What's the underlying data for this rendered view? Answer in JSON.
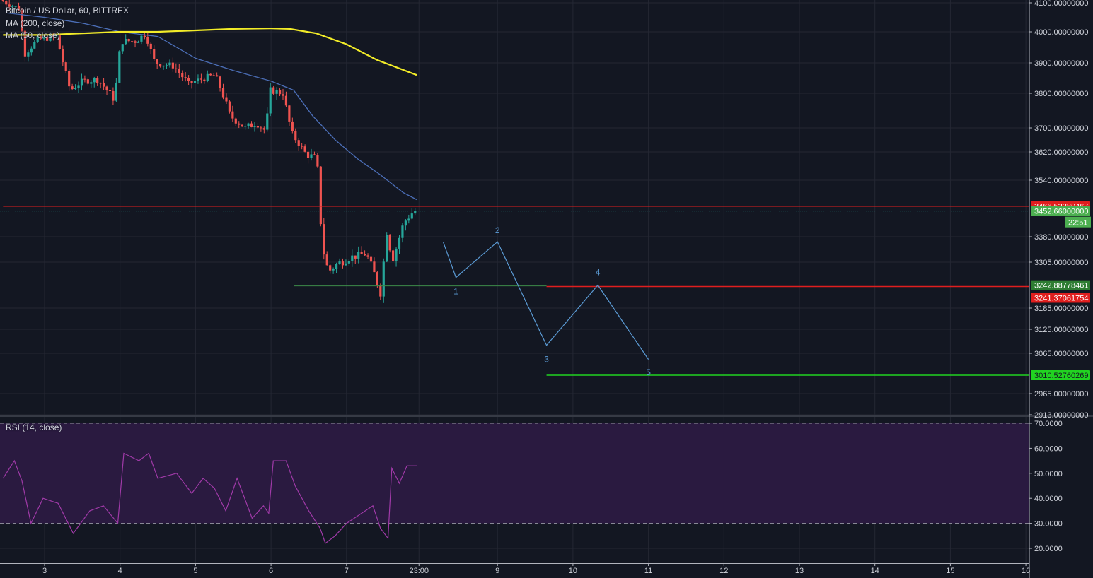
{
  "header": {
    "symbol_title": "Bitcoin / US Dollar, 60, BITTREX",
    "indicators": [
      "MA (200, close)",
      "MA (50, close)"
    ],
    "rsi_label": "RSI (14, close)"
  },
  "colors": {
    "background": "#131722",
    "grid": "#242733",
    "up_candle": "#26a69a",
    "down_candle": "#ef5350",
    "ma200": "#f2ec28",
    "ma50": "#4c6fb8",
    "wave": "#5b9bd5",
    "resistance": "#e01e1e",
    "support_green": "#21d321",
    "support_thin": "#3d8b4a",
    "rsi": "#a03aa8",
    "rsi_band": "#2a1a40",
    "text": "#d1d4dc"
  },
  "chart_data": [
    {
      "type": "candlestick",
      "title": "Bitcoin / US Dollar, 60, BITTREX",
      "ylim": [
        2913,
        4100
      ],
      "yticks": [
        "4100.00000000",
        "4000.00000000",
        "3900.00000000",
        "3800.00000000",
        "3700.00000000",
        "3620.00000000",
        "3540.00000000",
        "3380.00000000",
        "3305.00000000",
        "3185.00000000",
        "3125.00000000",
        "3065.00000000",
        "2965.00000000",
        "2913.00000000"
      ],
      "xticks": [
        {
          "label": "3",
          "day": 3
        },
        {
          "label": "4",
          "day": 4
        },
        {
          "label": "5",
          "day": 5
        },
        {
          "label": "6",
          "day": 6
        },
        {
          "label": "7",
          "day": 7
        },
        {
          "label": "23:00",
          "day": 7.96
        },
        {
          "label": "9",
          "day": 9
        },
        {
          "label": "10",
          "day": 10
        },
        {
          "label": "11",
          "day": 11
        },
        {
          "label": "12",
          "day": 12
        },
        {
          "label": "13",
          "day": 13
        },
        {
          "label": "14",
          "day": 14
        },
        {
          "label": "15",
          "day": 15
        },
        {
          "label": "16",
          "day": 16
        }
      ],
      "price_path": [
        [
          2.45,
          4110
        ],
        [
          2.7,
          4080
        ],
        [
          2.78,
          3930
        ],
        [
          2.95,
          3975
        ],
        [
          3.2,
          3985
        ],
        [
          3.38,
          3810
        ],
        [
          3.55,
          3840
        ],
        [
          3.75,
          3845
        ],
        [
          3.97,
          3780
        ],
        [
          4.05,
          3970
        ],
        [
          4.25,
          3970
        ],
        [
          4.38,
          3995
        ],
        [
          4.5,
          3900
        ],
        [
          4.75,
          3890
        ],
        [
          4.95,
          3830
        ],
        [
          5.1,
          3845
        ],
        [
          5.3,
          3860
        ],
        [
          5.4,
          3800
        ],
        [
          5.5,
          3735
        ],
        [
          5.7,
          3700
        ],
        [
          5.85,
          3715
        ],
        [
          5.97,
          3690
        ],
        [
          6.03,
          3810
        ],
        [
          6.2,
          3800
        ],
        [
          6.32,
          3680
        ],
        [
          6.5,
          3615
        ],
        [
          6.65,
          3600
        ],
        [
          6.72,
          3350
        ],
        [
          6.8,
          3280
        ],
        [
          6.92,
          3300
        ],
        [
          7.1,
          3320
        ],
        [
          7.3,
          3330
        ],
        [
          7.4,
          3280
        ],
        [
          7.5,
          3220
        ],
        [
          7.57,
          3400
        ],
        [
          7.65,
          3310
        ],
        [
          7.8,
          3420
        ],
        [
          7.93,
          3452
        ]
      ],
      "last_price": 3452.66,
      "last_price_label": "3452.66000000",
      "countdown": "22:51",
      "ma200": {
        "name": "MA (200, close)",
        "points": [
          [
            2.45,
            3990
          ],
          [
            3.0,
            3990
          ],
          [
            3.5,
            3995
          ],
          [
            4.0,
            4000
          ],
          [
            4.5,
            4000
          ],
          [
            5.0,
            4005
          ],
          [
            5.5,
            4010
          ],
          [
            6.0,
            4012
          ],
          [
            6.25,
            4010
          ],
          [
            6.6,
            3995
          ],
          [
            7.0,
            3960
          ],
          [
            7.4,
            3910
          ],
          [
            7.93,
            3860
          ]
        ]
      },
      "ma50": {
        "name": "MA (50, close)",
        "points": [
          [
            2.5,
            4065
          ],
          [
            3.0,
            4050
          ],
          [
            3.5,
            4030
          ],
          [
            4.0,
            4000
          ],
          [
            4.5,
            3985
          ],
          [
            5.0,
            3915
          ],
          [
            5.5,
            3875
          ],
          [
            6.0,
            3840
          ],
          [
            6.3,
            3810
          ],
          [
            6.55,
            3735
          ],
          [
            6.85,
            3660
          ],
          [
            7.15,
            3600
          ],
          [
            7.45,
            3555
          ],
          [
            7.75,
            3505
          ],
          [
            7.93,
            3485
          ]
        ]
      },
      "horizontal_lines": [
        {
          "name": "resistance",
          "value": 3466.52380467,
          "label": "3466.52380467",
          "from_day": 2.45,
          "to_day": 16.05,
          "color": "#e01e1e"
        },
        {
          "name": "low-support",
          "value": 3242.88778461,
          "label": "3242.88778461",
          "from_day": 6.3,
          "to_day": 9.65,
          "color": "#3d8b4a"
        },
        {
          "name": "wave-4-resistance",
          "value": 3241.37061754,
          "label": "3241.37061754",
          "from_day": 9.65,
          "to_day": 16.05,
          "color": "#e01e1e"
        },
        {
          "name": "target-support",
          "value": 3010.52760269,
          "label": "3010.52760269",
          "from_day": 9.65,
          "to_day": 16.05,
          "color": "#21d321"
        }
      ],
      "wave_path": [
        [
          8.28,
          3365
        ],
        [
          8.45,
          3265
        ],
        [
          9.0,
          3365
        ],
        [
          9.65,
          3085
        ],
        [
          10.33,
          3245
        ],
        [
          11.0,
          3050
        ]
      ],
      "wave_labels": [
        {
          "label": "1",
          "day": 8.45,
          "value": 3228
        },
        {
          "label": "2",
          "day": 9.0,
          "value": 3398
        },
        {
          "label": "3",
          "day": 9.65,
          "value": 3050
        },
        {
          "label": "4",
          "day": 10.33,
          "value": 3278
        },
        {
          "label": "5",
          "day": 11.0,
          "value": 3018
        }
      ]
    },
    {
      "type": "line",
      "title": "RSI (14, close)",
      "ylim": [
        15,
        71
      ],
      "yticks": [
        "70.0000",
        "60.0000",
        "50.0000",
        "40.0000",
        "30.0000",
        "20.0000"
      ],
      "upper_band": 70,
      "lower_band": 30,
      "series": [
        {
          "name": "RSI (14, close)",
          "points": [
            [
              2.45,
              48
            ],
            [
              2.6,
              55
            ],
            [
              2.7,
              47
            ],
            [
              2.82,
              30
            ],
            [
              2.98,
              40
            ],
            [
              3.18,
              38
            ],
            [
              3.38,
              26
            ],
            [
              3.6,
              35
            ],
            [
              3.78,
              37
            ],
            [
              3.97,
              30
            ],
            [
              4.05,
              58
            ],
            [
              4.25,
              55
            ],
            [
              4.38,
              58
            ],
            [
              4.5,
              48
            ],
            [
              4.75,
              50
            ],
            [
              4.95,
              42
            ],
            [
              5.1,
              48
            ],
            [
              5.25,
              44
            ],
            [
              5.4,
              35
            ],
            [
              5.55,
              48
            ],
            [
              5.75,
              32
            ],
            [
              5.9,
              37
            ],
            [
              5.97,
              34
            ],
            [
              6.03,
              55
            ],
            [
              6.2,
              55
            ],
            [
              6.32,
              45
            ],
            [
              6.5,
              35
            ],
            [
              6.65,
              28
            ],
            [
              6.72,
              22
            ],
            [
              6.85,
              25
            ],
            [
              7.0,
              30
            ],
            [
              7.2,
              34
            ],
            [
              7.35,
              37
            ],
            [
              7.45,
              28
            ],
            [
              7.55,
              24
            ],
            [
              7.6,
              52
            ],
            [
              7.7,
              46
            ],
            [
              7.8,
              53
            ],
            [
              7.93,
              53
            ]
          ]
        }
      ]
    }
  ]
}
